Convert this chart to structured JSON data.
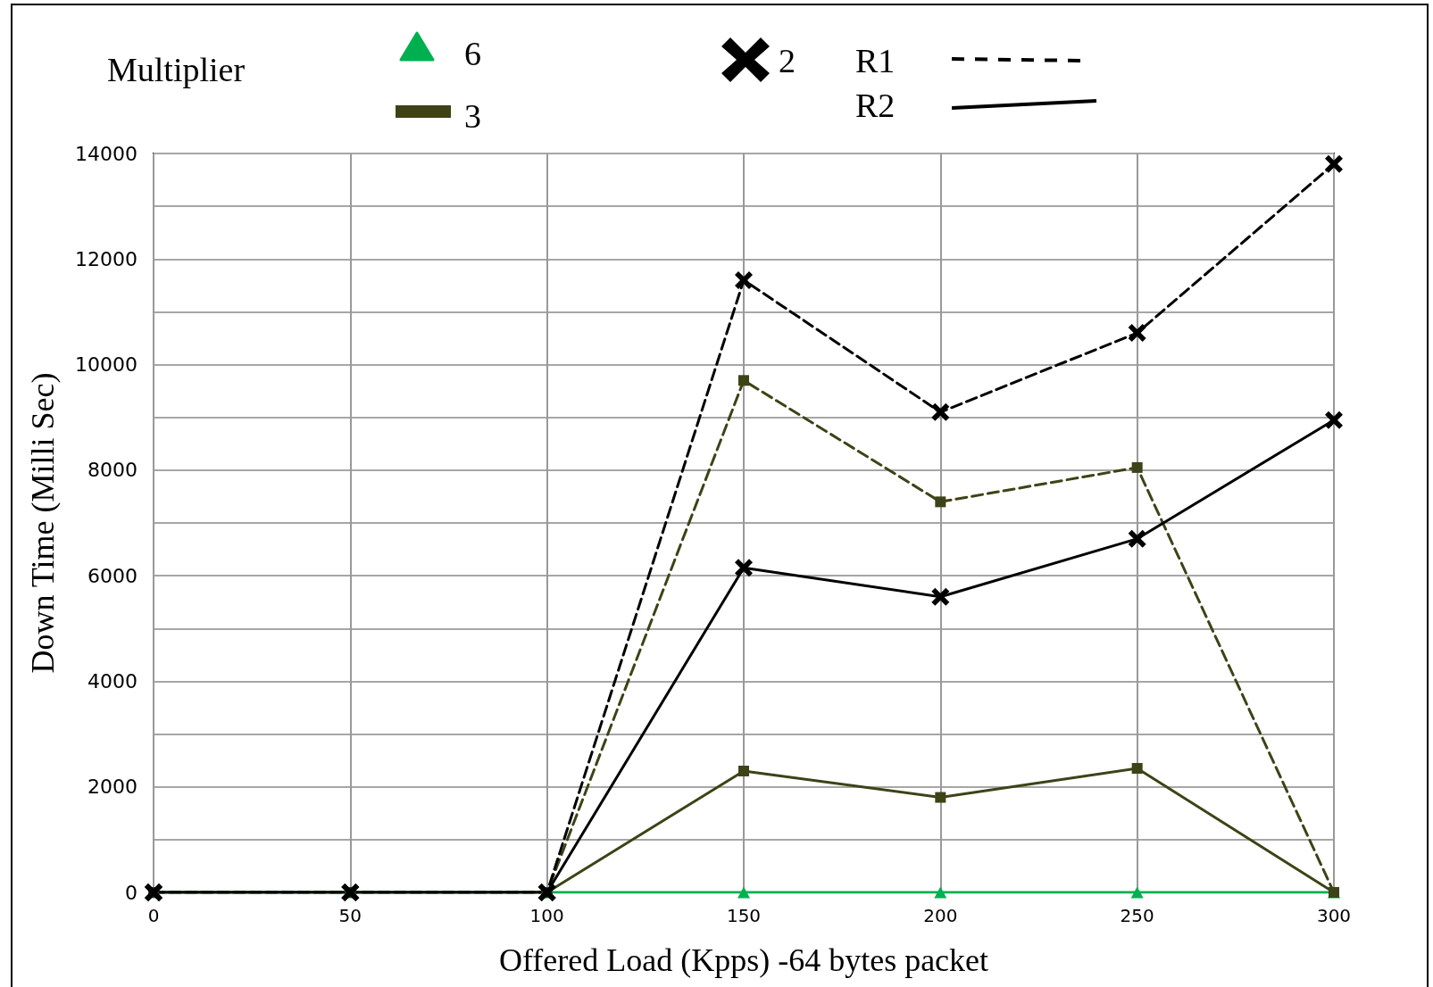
{
  "chart_data": {
    "type": "line",
    "xlabel": "Offered Load (Kpps) -64 bytes packet",
    "ylabel": "Down Time (Milli Sec)",
    "legend_title": "Multiplier",
    "annotations": [
      "6",
      "3",
      "2",
      "R1",
      "R2"
    ],
    "x": [
      0,
      50,
      100,
      150,
      200,
      250,
      300
    ],
    "xlim": [
      0,
      300
    ],
    "xticks": [
      0,
      50,
      100,
      150,
      200,
      250,
      300
    ],
    "ylim": [
      0,
      14000
    ],
    "yticks": [
      0,
      {
        "value": 1000,
        "label": null
      },
      2000,
      {
        "value": 3000,
        "label": null
      },
      4000,
      {
        "value": 5000,
        "label": null
      },
      6000,
      {
        "value": 7000,
        "label": null
      },
      8000,
      {
        "value": 9000,
        "label": null
      },
      10000,
      {
        "value": 11000,
        "label": null
      },
      12000,
      {
        "value": 13000,
        "label": null
      },
      14000
    ],
    "grid": true,
    "series": [
      {
        "color": "#00b050",
        "marker": "triangle",
        "line_style": "solid",
        "values": [
          0,
          0,
          0,
          0,
          0,
          0,
          0
        ]
      },
      {
        "color": "#3d4316",
        "marker": "square",
        "line_style": "solid",
        "values": [
          0,
          0,
          0,
          2300,
          1800,
          2350,
          0
        ]
      },
      {
        "color": "#3d4316",
        "marker": "square",
        "line_style": "dashed",
        "values": [
          0,
          0,
          0,
          9700,
          7400,
          8050,
          0
        ]
      },
      {
        "color": "#000000",
        "marker": "cross",
        "line_style": "solid",
        "values": [
          0,
          0,
          0,
          6150,
          5600,
          6700,
          8950
        ]
      },
      {
        "color": "#000000",
        "marker": "cross",
        "line_style": "dashed",
        "values": [
          0,
          0,
          0,
          11600,
          9100,
          10600,
          13800
        ]
      }
    ]
  }
}
